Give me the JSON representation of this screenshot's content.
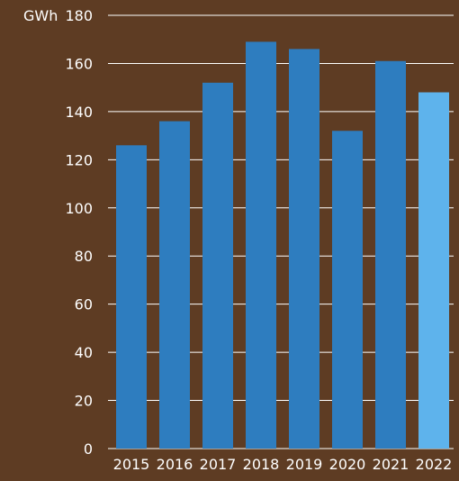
{
  "chart_data": {
    "type": "bar",
    "title": "",
    "xlabel": "",
    "ylabel": "GWh",
    "ylim": [
      0,
      180
    ],
    "yticks": [
      0,
      20,
      40,
      60,
      80,
      100,
      120,
      140,
      160,
      180
    ],
    "grid": true,
    "legend": "none",
    "categories": [
      "2015",
      "2016",
      "2017",
      "2018",
      "2019",
      "2020",
      "2021",
      "2022"
    ],
    "values": [
      126,
      136,
      152,
      169,
      166,
      132,
      161,
      148
    ],
    "colors": {
      "background": "#5e3c23",
      "bar": "#2e7dbf",
      "bar_highlight": "#5eb3ec",
      "grid": "#ffffff",
      "text": "#ffffff"
    },
    "highlight_category": "2022"
  }
}
